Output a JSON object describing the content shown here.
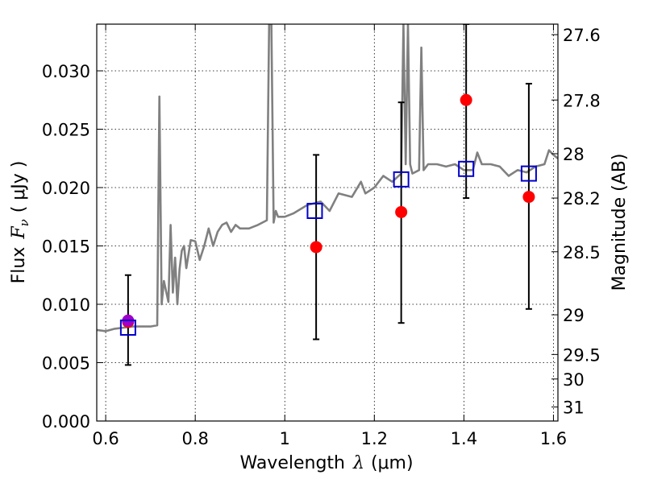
{
  "chart_data": {
    "type": "scatter",
    "xlabel": "Wavelength",
    "xlabel_symbol": "λ",
    "xlabel_unit": "(μm)",
    "ylabel": "Flux",
    "ylabel_symbol": "F",
    "ylabel_subscript": "ν",
    "ylabel_unit": "( μJy )",
    "y2label": "Magnitude (AB)",
    "xlim": [
      0.58,
      1.61
    ],
    "ylim": [
      0.0,
      0.034
    ],
    "grid": true,
    "x_ticks": [
      0.6,
      0.8,
      1.0,
      1.2,
      1.4,
      1.6
    ],
    "x_tick_labels": [
      "0.6",
      "0.8",
      "1",
      "1.2",
      "1.4",
      "1.6"
    ],
    "y_ticks": [
      0.0,
      0.005,
      0.01,
      0.015,
      0.02,
      0.025,
      0.03
    ],
    "y_tick_labels": [
      "0.000",
      "0.005",
      "0.010",
      "0.015",
      "0.020",
      "0.025",
      "0.030"
    ],
    "y2_ticks": [
      {
        "label": "27.6",
        "flux": 0.0331
      },
      {
        "label": "27.8",
        "flux": 0.0275
      },
      {
        "label": "28",
        "flux": 0.0229
      },
      {
        "label": "28.2",
        "flux": 0.0191
      },
      {
        "label": "28.5",
        "flux": 0.0145
      },
      {
        "label": "29",
        "flux": 0.0091
      },
      {
        "label": "29.5",
        "flux": 0.0057
      },
      {
        "label": "30",
        "flux": 0.0036
      },
      {
        "label": "31",
        "flux": 0.0012
      }
    ],
    "series": [
      {
        "kind": "line",
        "color": "#808080",
        "x": [
          0.58,
          0.6,
          0.62,
          0.64,
          0.66,
          0.68,
          0.7,
          0.715,
          0.72,
          0.725,
          0.73,
          0.74,
          0.745,
          0.75,
          0.755,
          0.76,
          0.765,
          0.77,
          0.775,
          0.78,
          0.79,
          0.8,
          0.81,
          0.82,
          0.83,
          0.84,
          0.85,
          0.86,
          0.87,
          0.88,
          0.89,
          0.9,
          0.92,
          0.94,
          0.96,
          0.965,
          0.97,
          0.975,
          0.98,
          0.985,
          1.0,
          1.02,
          1.05,
          1.08,
          1.1,
          1.12,
          1.15,
          1.17,
          1.18,
          1.2,
          1.22,
          1.24,
          1.26,
          1.265,
          1.27,
          1.275,
          1.28,
          1.285,
          1.3,
          1.305,
          1.31,
          1.32,
          1.34,
          1.36,
          1.38,
          1.4,
          1.42,
          1.43,
          1.44,
          1.46,
          1.48,
          1.5,
          1.52,
          1.54,
          1.56,
          1.58,
          1.59,
          1.6,
          1.61
        ],
        "values": [
          0.0078,
          0.0077,
          0.0079,
          0.008,
          0.0081,
          0.0081,
          0.0081,
          0.0082,
          0.0278,
          0.01,
          0.012,
          0.0102,
          0.0168,
          0.011,
          0.014,
          0.01,
          0.013,
          0.0146,
          0.015,
          0.0131,
          0.0155,
          0.0154,
          0.0138,
          0.015,
          0.0165,
          0.015,
          0.0162,
          0.0168,
          0.017,
          0.0162,
          0.0168,
          0.0165,
          0.0165,
          0.0168,
          0.0172,
          0.034,
          0.034,
          0.017,
          0.018,
          0.0175,
          0.0175,
          0.0178,
          0.0185,
          0.0188,
          0.018,
          0.0195,
          0.0192,
          0.0205,
          0.0195,
          0.02,
          0.021,
          0.0205,
          0.0212,
          0.034,
          0.022,
          0.034,
          0.022,
          0.0212,
          0.0215,
          0.032,
          0.0215,
          0.022,
          0.022,
          0.0218,
          0.022,
          0.0215,
          0.0215,
          0.023,
          0.022,
          0.022,
          0.0218,
          0.021,
          0.0215,
          0.0213,
          0.0218,
          0.022,
          0.0232,
          0.0228,
          0.0225
        ]
      },
      {
        "kind": "errorbar",
        "color": "#000000",
        "x": [
          0.65,
          1.07,
          1.26,
          1.405,
          1.545
        ],
        "low": [
          0.0048,
          0.007,
          0.0084,
          0.0191,
          0.0096
        ],
        "high": [
          0.0125,
          0.0228,
          0.0273,
          0.034,
          0.0289
        ]
      },
      {
        "kind": "points",
        "marker": "circle",
        "color": "#ff0000",
        "x": [
          0.65,
          1.07,
          1.26,
          1.405,
          1.545
        ],
        "values": [
          0.0085,
          0.0149,
          0.0179,
          0.0275,
          0.0192
        ]
      },
      {
        "kind": "points",
        "marker": "circle",
        "color": "#a000c8",
        "x": [
          0.65
        ],
        "values": [
          0.0086
        ]
      },
      {
        "kind": "points",
        "marker": "open-square",
        "color": "#0000cc",
        "x": [
          0.65,
          1.067,
          1.26,
          1.405,
          1.545
        ],
        "values": [
          0.008,
          0.018,
          0.0207,
          0.0216,
          0.0212
        ]
      }
    ]
  }
}
